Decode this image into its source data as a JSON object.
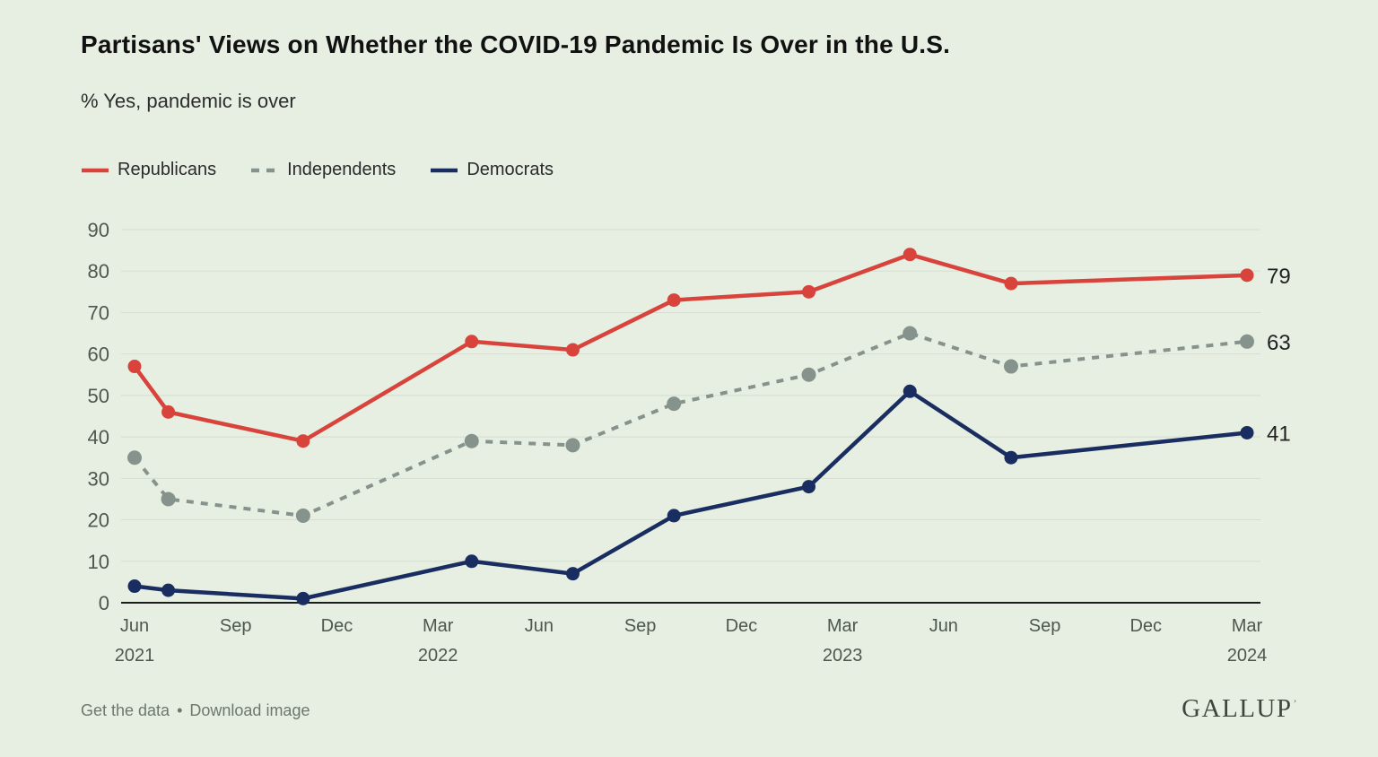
{
  "title": "Partisans' Views on Whether the COVID-19 Pandemic Is Over in the U.S.",
  "subtitle": "% Yes, pandemic is over",
  "footer": {
    "get_data": "Get the data",
    "separator": "•",
    "download_image": "Download image",
    "logo": "GALLUP",
    "logo_mark": "’"
  },
  "chart_data": {
    "type": "line",
    "title": "Partisans' Views on Whether the COVID-19 Pandemic Is Over in the U.S.",
    "subtitle": "% Yes, pandemic is over",
    "ylim": [
      0,
      90
    ],
    "ytick_step": 10,
    "grid": "horizontal",
    "legend_position": "top-left",
    "x_unit": "months since Jun 2021",
    "x": [
      0,
      1,
      5,
      10,
      13,
      16,
      20,
      23,
      26,
      33
    ],
    "x_dates": [
      "Jun 2021",
      "Jul 2021",
      "Nov 2021",
      "Apr 2022",
      "Jul 2022",
      "Oct 2022",
      "Feb 2023",
      "May 2023",
      "Aug 2023",
      "Mar 2024"
    ],
    "x_tick_labels": [
      [
        "Jun",
        "2021"
      ],
      [
        "Sep"
      ],
      [
        "Dec"
      ],
      [
        "Mar",
        "2022"
      ],
      [
        "Jun"
      ],
      [
        "Sep"
      ],
      [
        "Dec"
      ],
      [
        "Mar",
        "2023"
      ],
      [
        "Jun"
      ],
      [
        "Sep"
      ],
      [
        "Dec"
      ],
      [
        "Mar",
        "2024"
      ]
    ],
    "series": [
      {
        "name": "Independents",
        "color": "#85938c",
        "dashed": true,
        "values": [
          35,
          25,
          21,
          39,
          38,
          48,
          55,
          65,
          57,
          63
        ],
        "end_label": "63"
      },
      {
        "name": "Republicans",
        "color": "#d8433c",
        "dashed": false,
        "values": [
          57,
          46,
          39,
          63,
          61,
          73,
          75,
          84,
          77,
          79
        ],
        "end_label": "79"
      },
      {
        "name": "Democrats",
        "color": "#1a2d60",
        "dashed": false,
        "values": [
          4,
          3,
          1,
          10,
          7,
          21,
          28,
          51,
          35,
          41
        ],
        "end_label": "41"
      }
    ],
    "colors": {
      "background": "#e6efe2",
      "gridline": "#d7ddd1",
      "baseline": "#1c1c1c",
      "axis_text": "#4e574e",
      "end_label_text": "#212121"
    }
  }
}
